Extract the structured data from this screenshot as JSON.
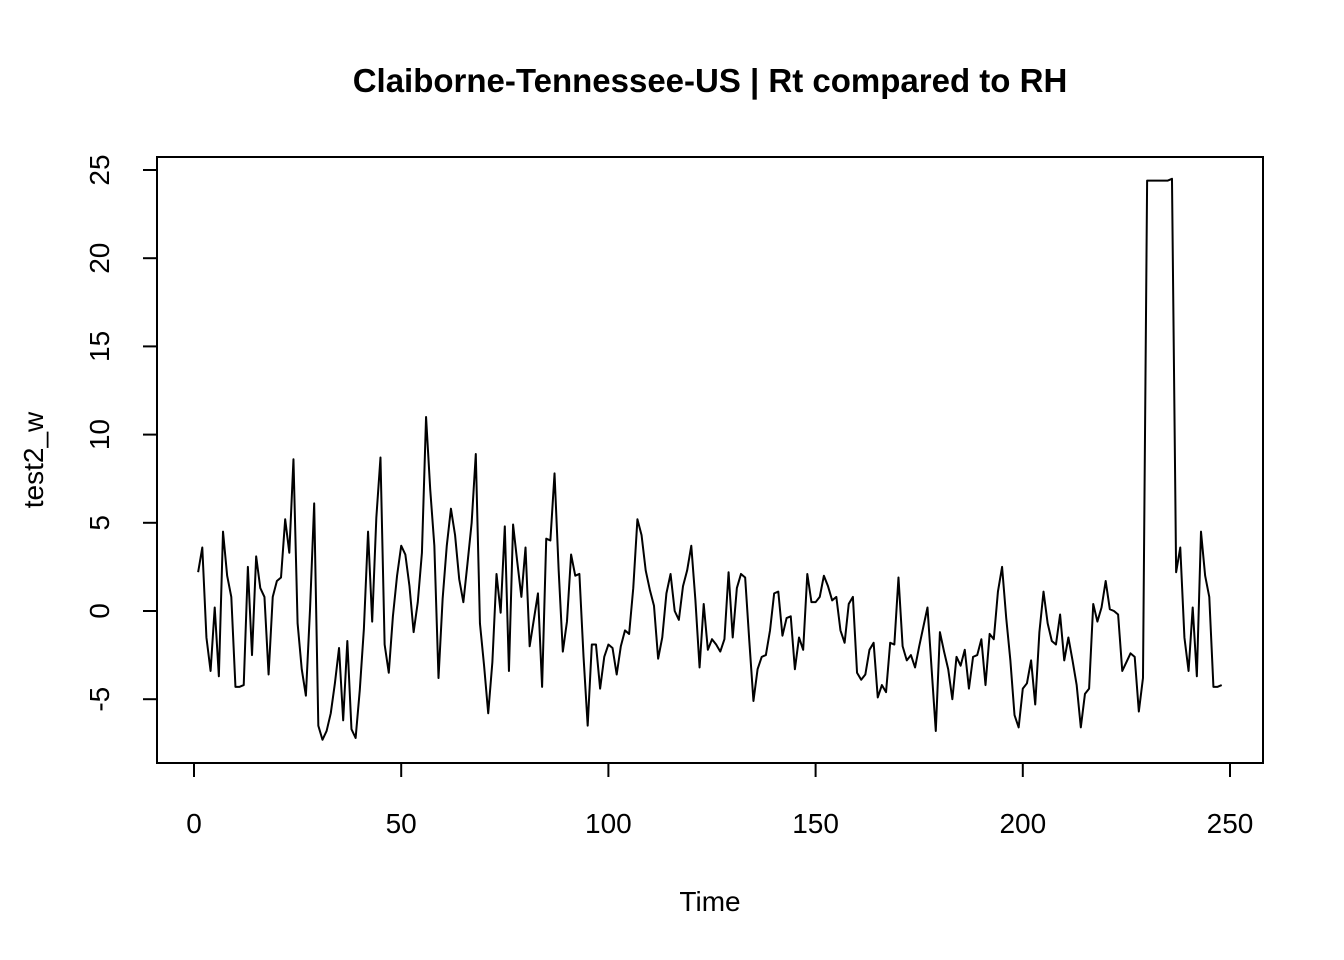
{
  "chart_data": {
    "type": "line",
    "title": "Claiborne-Tennessee-US | Rt compared to RH",
    "xlabel": "Time",
    "ylabel": "test2_w",
    "xlim": [
      0,
      250
    ],
    "ylim": [
      -7.5,
      25
    ],
    "x_ticks": [
      0,
      50,
      100,
      150,
      200,
      250
    ],
    "y_ticks": [
      -5,
      0,
      5,
      10,
      15,
      20,
      25
    ],
    "grid": false,
    "legend": "none",
    "series": [
      {
        "x_start": 1,
        "values": [
          2.2,
          3.6,
          -1.5,
          -3.4,
          0.2,
          -3.7,
          4.5,
          2.0,
          0.8,
          -4.3,
          -4.3,
          -4.2,
          2.5,
          -2.5,
          3.1,
          1.3,
          0.8,
          -3.6,
          0.8,
          1.7,
          1.9,
          5.2,
          3.3,
          8.6,
          -0.7,
          -3.3,
          -4.8,
          0.1,
          6.1,
          -6.5,
          -7.3,
          -6.8,
          -5.8,
          -4.1,
          -2.1,
          -6.2,
          -1.7,
          -6.7,
          -7.2,
          -4.5,
          -1.0,
          4.5,
          -0.6,
          5.3,
          8.7,
          -1.9,
          -3.5,
          -0.3,
          2.0,
          3.7,
          3.2,
          1.4,
          -1.2,
          0.5,
          3.3,
          11.0,
          6.9,
          3.7,
          -3.8,
          0.7,
          3.7,
          5.8,
          4.3,
          1.8,
          0.5,
          2.7,
          5.0,
          8.9,
          -0.7,
          -3.1,
          -5.8,
          -2.9,
          2.1,
          -0.1,
          4.8,
          -3.4,
          4.9,
          2.8,
          0.8,
          3.6,
          -2.0,
          -0.5,
          1.0,
          -4.3,
          4.1,
          4.0,
          7.8,
          2.3,
          -2.3,
          -0.6,
          3.2,
          2.0,
          2.1,
          -2.6,
          -6.5,
          -1.9,
          -1.9,
          -4.4,
          -2.6,
          -1.9,
          -2.1,
          -3.6,
          -2.0,
          -1.1,
          -1.3,
          1.3,
          5.2,
          4.3,
          2.3,
          1.2,
          0.3,
          -2.7,
          -1.5,
          1.0,
          2.1,
          0.0,
          -0.5,
          1.4,
          2.3,
          3.7,
          0.6,
          -3.2,
          0.4,
          -2.2,
          -1.6,
          -1.9,
          -2.3,
          -1.6,
          2.2,
          -1.5,
          1.3,
          2.1,
          1.9,
          -1.7,
          -5.1,
          -3.3,
          -2.6,
          -2.5,
          -1.1,
          1.0,
          1.1,
          -1.4,
          -0.4,
          -0.3,
          -3.3,
          -1.5,
          -2.2,
          2.1,
          0.5,
          0.5,
          0.8,
          2.0,
          1.4,
          0.6,
          0.8,
          -1.1,
          -1.8,
          0.4,
          0.8,
          -3.5,
          -3.9,
          -3.6,
          -2.2,
          -1.8,
          -4.9,
          -4.2,
          -4.6,
          -1.8,
          -1.9,
          1.9,
          -2.0,
          -2.8,
          -2.5,
          -3.2,
          -2.0,
          -0.9,
          0.2,
          -3.3,
          -6.8,
          -1.2,
          -2.3,
          -3.3,
          -5.0,
          -2.6,
          -3.1,
          -2.2,
          -4.4,
          -2.6,
          -2.5,
          -1.6,
          -4.2,
          -1.3,
          -1.6,
          1.1,
          2.5,
          -0.4,
          -2.8,
          -5.9,
          -6.6,
          -4.4,
          -4.1,
          -2.8,
          -5.3,
          -1.2,
          1.1,
          -0.7,
          -1.7,
          -1.9,
          -0.2,
          -2.8,
          -1.5,
          -2.8,
          -4.2,
          -6.6,
          -4.7,
          -4.4,
          0.4,
          -0.6,
          0.2,
          1.7,
          0.1,
          0.0,
          -0.2,
          -3.4,
          -2.9,
          -2.4,
          -2.6,
          -5.7,
          -3.8,
          24.4,
          24.4,
          24.4,
          24.4,
          24.4,
          24.4,
          24.5,
          2.2,
          3.6,
          -1.5,
          -3.4,
          0.2,
          -3.7,
          4.5,
          2.0,
          0.8,
          -4.3,
          -4.3,
          -4.2
        ]
      }
    ]
  }
}
